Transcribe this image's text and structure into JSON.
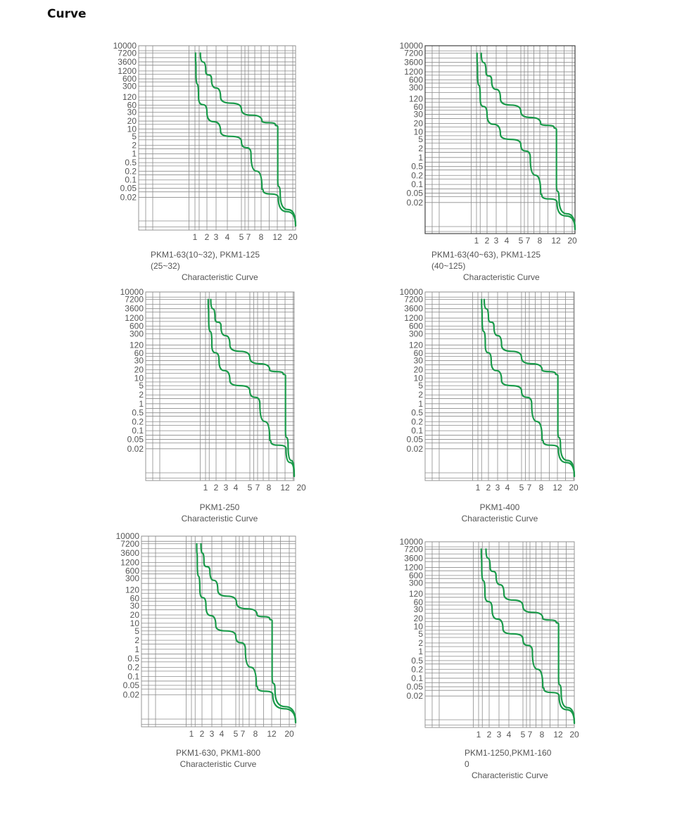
{
  "page": {
    "title": "Curve"
  },
  "chart_data": [
    {
      "type": "line",
      "caption": [
        "PKM1-63(10~32), PKM1-125",
        "(25~32)"
      ],
      "subtitle": "Characteristic Curve",
      "x_ticks": [
        "1",
        "2",
        "3",
        "4",
        "5",
        "7",
        "8",
        "12",
        "20"
      ],
      "y_ticks": [
        "10000",
        "7200",
        "3600",
        "1200",
        "600",
        "300",
        "120",
        "60",
        "30",
        "20",
        "10",
        "5",
        "2",
        "1",
        "0.5",
        "0.2",
        "0.1",
        "0.05",
        "0.02"
      ],
      "grid": true,
      "series": [
        {
          "x": [
            1.05,
            1.08,
            1.3,
            2.0,
            3.4,
            5.0,
            7.2,
            8.2,
            8.5,
            12.5,
            40
          ],
          "y": [
            7200,
            1200,
            120,
            30,
            8,
            3,
            1,
            0.05,
            0.04,
            0.02,
            0.01
          ],
          "color": "#1a9a4a"
        },
        {
          "x": [
            1.45,
            1.9,
            2.5,
            3.4,
            5.0,
            8.2,
            11.5,
            12.2,
            12.2,
            13.5,
            40
          ],
          "y": [
            7200,
            1200,
            600,
            120,
            40,
            20,
            15,
            12,
            0.1,
            0.03,
            0.01
          ],
          "color": "#1a9a4a"
        }
      ]
    },
    {
      "type": "line",
      "caption": [
        "PKM1-63(40~63), PKM1-125",
        "(40~125)"
      ],
      "subtitle": "Characteristic Curve",
      "x_ticks": [
        "1",
        "2",
        "3",
        "4",
        "5",
        "7",
        "8",
        "12",
        "20"
      ],
      "y_ticks": [
        "10000",
        "7200",
        "3600",
        "1200",
        "600",
        "300",
        "120",
        "60",
        "30",
        "20",
        "10",
        "5",
        "2",
        "1",
        "0.5",
        "0.2",
        "0.1",
        "0.05",
        "0.02"
      ],
      "grid": true,
      "series": [
        {
          "x": [
            1.05,
            1.1,
            1.35,
            2.0,
            3.4,
            5.0,
            7.2,
            8.2,
            8.5,
            12.5,
            40
          ],
          "y": [
            7200,
            1200,
            120,
            30,
            8,
            3,
            1,
            0.05,
            0.04,
            0.02,
            0.01
          ],
          "color": "#1a9a4a"
        },
        {
          "x": [
            1.45,
            1.9,
            2.5,
            3.4,
            5.0,
            8.2,
            11.5,
            12.2,
            12.2,
            13.5,
            40
          ],
          "y": [
            7200,
            1200,
            600,
            120,
            40,
            20,
            15,
            12,
            0.1,
            0.03,
            0.01
          ],
          "color": "#1a9a4a"
        }
      ]
    },
    {
      "type": "line",
      "caption": [
        "PKM1-250"
      ],
      "subtitle": "Characteristic Curve",
      "x_ticks": [
        "1",
        "2",
        "3",
        "4",
        "5",
        "7",
        "8",
        "12",
        "20"
      ],
      "y_ticks": [
        "10000",
        "7200",
        "3600",
        "1200",
        "600",
        "300",
        "120",
        "60",
        "30",
        "20",
        "10",
        "5",
        "2",
        "1",
        "0.5",
        "0.2",
        "0.1",
        "0.05",
        "0.02"
      ],
      "grid": true,
      "series": [
        {
          "x": [
            1.25,
            1.3,
            1.6,
            2.3,
            3.4,
            5.0,
            7.2,
            8.2,
            8.5,
            12.5,
            40
          ],
          "y": [
            7200,
            1200,
            120,
            30,
            8,
            3,
            1,
            0.05,
            0.04,
            0.02,
            0.01
          ],
          "color": "#1a9a4a"
        },
        {
          "x": [
            1.5,
            1.9,
            2.5,
            3.4,
            5.0,
            8.2,
            11.5,
            12.2,
            12.2,
            13.5,
            40
          ],
          "y": [
            7200,
            1200,
            600,
            120,
            40,
            20,
            15,
            12,
            0.1,
            0.03,
            0.01
          ],
          "color": "#1a9a4a"
        }
      ]
    },
    {
      "type": "line",
      "caption": [
        "PKM1-400"
      ],
      "subtitle": "Characteristic Curve",
      "x_ticks": [
        "1",
        "2",
        "3",
        "4",
        "5",
        "7",
        "8",
        "12",
        "20"
      ],
      "y_ticks": [
        "10000",
        "7200",
        "3600",
        "1200",
        "600",
        "300",
        "120",
        "60",
        "30",
        "20",
        "10",
        "5",
        "2",
        "1",
        "0.5",
        "0.2",
        "0.1",
        "0.05",
        "0.02"
      ],
      "grid": true,
      "series": [
        {
          "x": [
            1.35,
            1.4,
            1.7,
            2.3,
            3.4,
            5.0,
            7.2,
            8.2,
            8.5,
            12.5,
            40
          ],
          "y": [
            7200,
            1200,
            120,
            30,
            8,
            3,
            1,
            0.05,
            0.04,
            0.02,
            0.01
          ],
          "color": "#1a9a4a"
        },
        {
          "x": [
            1.6,
            2.0,
            2.6,
            3.4,
            5.0,
            8.2,
            11.5,
            12.2,
            12.2,
            13.5,
            40
          ],
          "y": [
            7200,
            1200,
            600,
            120,
            40,
            20,
            15,
            12,
            0.1,
            0.03,
            0.01
          ],
          "color": "#1a9a4a"
        }
      ]
    },
    {
      "type": "line",
      "caption": [
        "PKM1-630, PKM1-800"
      ],
      "subtitle": "Characteristic Curve",
      "x_ticks": [
        "1",
        "2",
        "3",
        "4",
        "5",
        "7",
        "8",
        "12",
        "20"
      ],
      "y_ticks": [
        "10000",
        "7200",
        "3600",
        "1200",
        "600",
        "300",
        "120",
        "60",
        "30",
        "20",
        "10",
        "5",
        "2",
        "1",
        "0.5",
        "0.2",
        "0.1",
        "0.05",
        "0.02"
      ],
      "grid": true,
      "series": [
        {
          "x": [
            1.5,
            1.55,
            1.8,
            2.4,
            3.4,
            5.0,
            7.2,
            8.2,
            8.5,
            12.5,
            40
          ],
          "y": [
            7200,
            1200,
            120,
            30,
            8,
            3,
            1,
            0.05,
            0.04,
            0.02,
            0.01
          ],
          "color": "#1a9a4a"
        },
        {
          "x": [
            1.9,
            2.2,
            2.8,
            3.6,
            5.2,
            8.4,
            11.5,
            12.2,
            12.2,
            13.5,
            40
          ],
          "y": [
            7200,
            1200,
            600,
            120,
            40,
            20,
            15,
            12,
            0.1,
            0.03,
            0.01
          ],
          "color": "#1a9a4a"
        }
      ]
    },
    {
      "type": "line",
      "caption": [
        "PKM1-1250,PKM1-160",
        "0"
      ],
      "subtitle": "Characteristic Curve",
      "x_ticks": [
        "1",
        "2",
        "3",
        "4",
        "5",
        "7",
        "8",
        "12",
        "20"
      ],
      "y_ticks": [
        "10000",
        "7200",
        "3600",
        "1200",
        "600",
        "300",
        "120",
        "60",
        "30",
        "20",
        "10",
        "5",
        "2",
        "1",
        "0.5",
        "0.2",
        "0.1",
        "0.05",
        "0.02"
      ],
      "grid": true,
      "series": [
        {
          "x": [
            1.25,
            1.3,
            1.6,
            2.3,
            3.4,
            5.0,
            7.2,
            8.2,
            8.5,
            12.5,
            40
          ],
          "y": [
            7200,
            1200,
            120,
            30,
            8,
            3,
            1,
            0.05,
            0.04,
            0.02,
            0.01
          ],
          "color": "#1a9a4a"
        },
        {
          "x": [
            1.7,
            2.1,
            2.7,
            3.5,
            5.0,
            8.2,
            11.5,
            12.2,
            12.2,
            13.5,
            40
          ],
          "y": [
            7200,
            1200,
            600,
            120,
            40,
            20,
            15,
            12,
            0.1,
            0.03,
            0.01
          ],
          "color": "#1a9a4a"
        }
      ]
    }
  ]
}
